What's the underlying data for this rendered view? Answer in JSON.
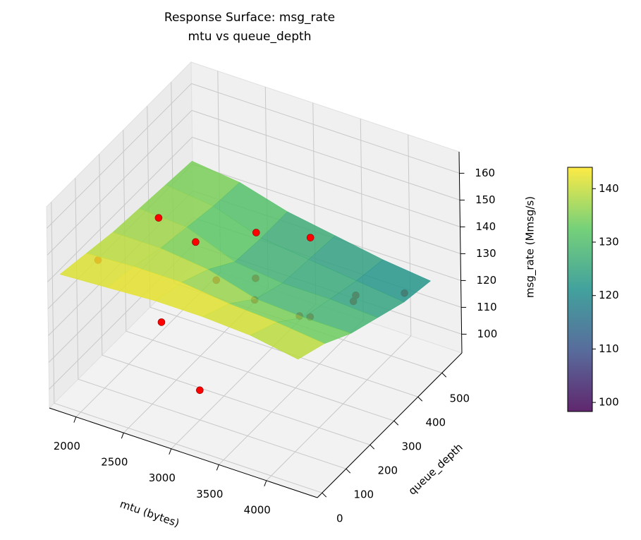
{
  "chart_data": {
    "type": "surface3d",
    "title": "Response Surface: msg_rate",
    "subtitle": "mtu vs queue_depth",
    "xlabel": "mtu (bytes)",
    "ylabel": "queue_depth",
    "zlabel": "msg_rate (Mmsg/s)",
    "xlim": [
      1720,
      4535
    ],
    "ylim": [
      -20,
      583
    ],
    "zlim": [
      93,
      168
    ],
    "xticks": [
      2000,
      2500,
      3000,
      3500,
      4000
    ],
    "yticks": [
      0,
      100,
      200,
      300,
      400,
      500
    ],
    "zticks": [
      100,
      110,
      120,
      130,
      140,
      150,
      160
    ],
    "surface": {
      "x": [
        1800,
        2300,
        2800,
        3300,
        3800,
        4300
      ],
      "y": [
        0,
        110,
        220,
        330,
        440,
        550
      ],
      "z": [
        [
          142,
          143,
          144,
          144,
          143,
          140
        ],
        [
          140,
          141,
          141,
          139,
          138,
          136
        ],
        [
          138,
          138,
          136,
          131,
          130,
          130
        ],
        [
          137,
          136,
          129,
          127,
          127,
          126
        ],
        [
          136,
          134,
          128,
          126,
          124,
          122
        ],
        [
          135,
          133,
          128,
          125,
          122,
          120
        ]
      ],
      "opacity": 0.85
    },
    "points": {
      "color": "#ff0000",
      "x": [
        3000,
        1945,
        2283,
        2762,
        2593,
        2846,
        3184,
        3831,
        4169,
        2649,
        2987,
        3128,
        3522,
        3634,
        3888
      ],
      "y": [
        101,
        101,
        221,
        40,
        251,
        402,
        493,
        414,
        493,
        312,
        342,
        282,
        312,
        312,
        402
      ],
      "z": [
        104,
        140,
        149,
        132,
        141,
        134,
        128,
        119,
        119,
        122,
        124,
        123,
        119,
        120,
        123
      ]
    },
    "colorbar": {
      "colormap": "viridis",
      "clim": [
        98.3,
        144
      ],
      "ticks": [
        100,
        110,
        120,
        130,
        140
      ]
    }
  }
}
